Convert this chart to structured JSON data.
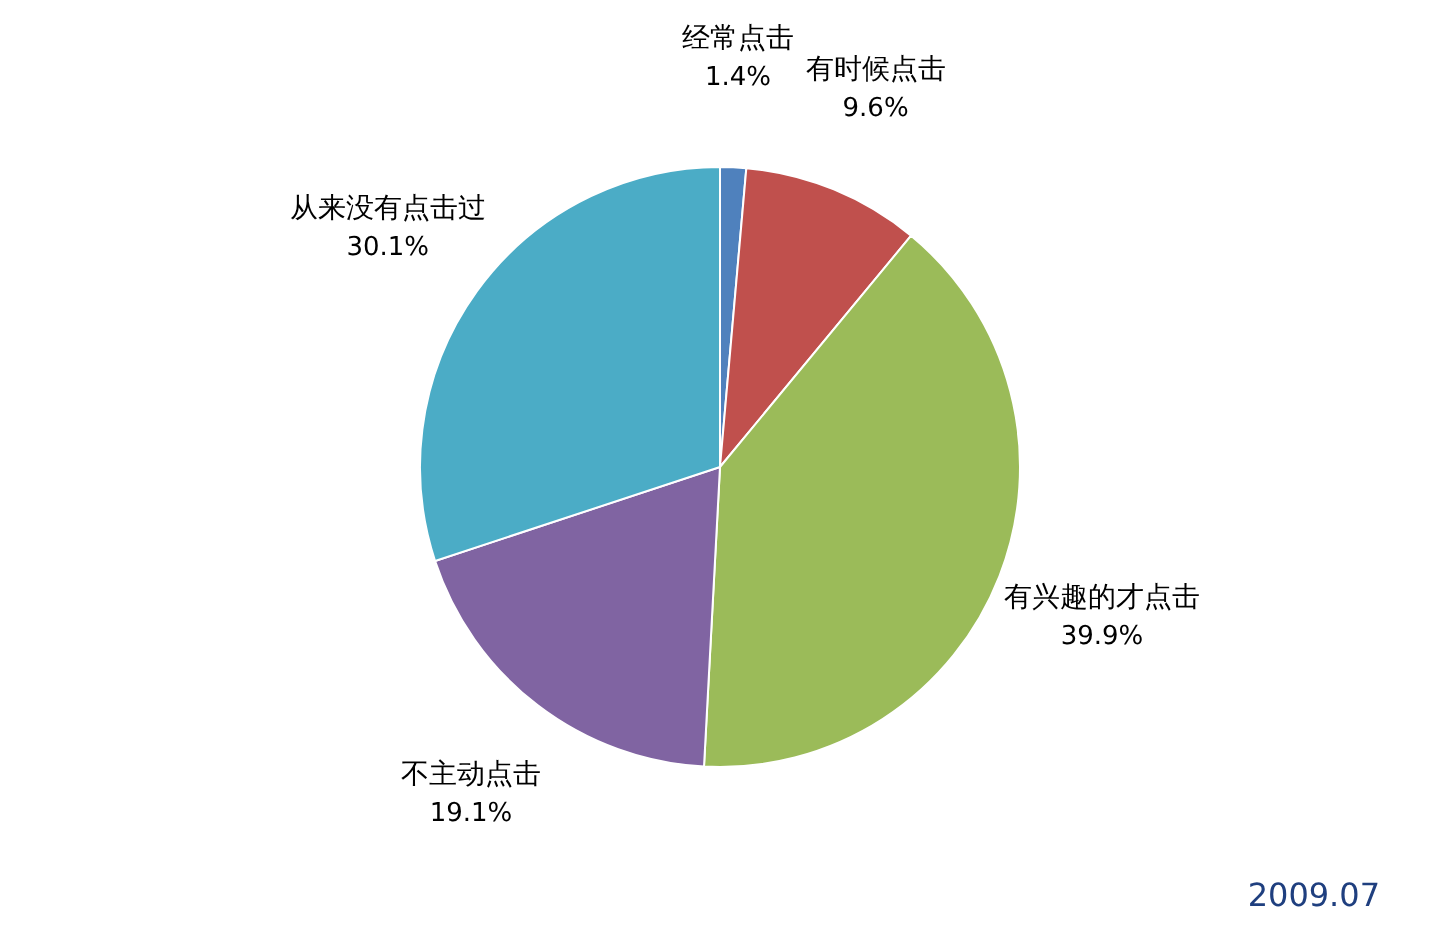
{
  "chart_data": {
    "type": "pie",
    "categories": [
      "经常点击",
      "有时候点击",
      "有兴趣的才点击",
      "不主动点击",
      "从来没有点击过"
    ],
    "values": [
      1.4,
      9.6,
      39.9,
      19.1,
      30.1
    ],
    "colors": [
      "#4f81bd",
      "#c0504d",
      "#9bbb59",
      "#8064a2",
      "#4bacc6"
    ],
    "value_labels": [
      "1.4%",
      "9.6%",
      "39.9%",
      "19.1%",
      "30.1%"
    ],
    "annotations": [
      "2009.07"
    ]
  }
}
